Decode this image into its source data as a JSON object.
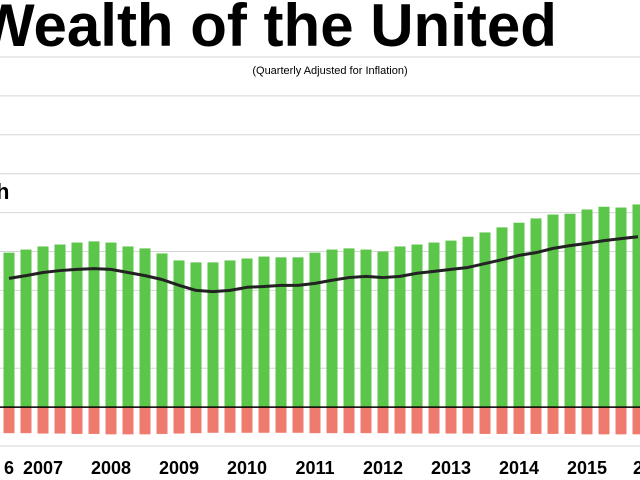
{
  "chart_data": {
    "type": "bar",
    "title": "Wealth of the United",
    "subtitle": "(Quarterly Adjusted for Inflation)",
    "annotation": "h",
    "categories": [
      "6",
      null,
      "2007",
      null,
      null,
      null,
      "2008",
      null,
      null,
      null,
      "2009",
      null,
      null,
      null,
      "2010",
      null,
      null,
      null,
      "2011",
      null,
      null,
      null,
      "2012",
      null,
      null,
      null,
      "2013",
      null,
      null,
      null,
      "2014",
      null,
      null,
      null,
      "2015",
      null,
      null,
      "2"
    ],
    "series": [
      {
        "type": "bar",
        "color": "#5cc64a",
        "values": [
          39.7,
          40.5,
          41.3,
          41.8,
          42.3,
          42.6,
          42.3,
          41.3,
          40.8,
          39.5,
          37.7,
          37.2,
          37.2,
          37.7,
          38.2,
          38.7,
          38.5,
          38.5,
          39.7,
          40.5,
          40.8,
          40.5,
          40,
          41.3,
          41.8,
          42.3,
          42.8,
          43.8,
          44.9,
          46.2,
          47.4,
          48.5,
          49.5,
          49.7,
          50.8,
          51.5,
          51.3,
          52.1
        ]
      },
      {
        "type": "bar",
        "color": "#ef7b6e",
        "values": [
          -6.7,
          -6.7,
          -6.8,
          -6.8,
          -6.9,
          -6.9,
          -7,
          -7,
          -7,
          -6.9,
          -6.8,
          -6.7,
          -6.6,
          -6.6,
          -6.6,
          -6.6,
          -6.6,
          -6.6,
          -6.7,
          -6.7,
          -6.7,
          -6.7,
          -6.7,
          -6.8,
          -6.8,
          -6.8,
          -6.8,
          -6.8,
          -6.9,
          -6.9,
          -6.9,
          -6.9,
          -6.9,
          -6.9,
          -7,
          -7,
          -7,
          -7
        ]
      },
      {
        "type": "line",
        "color": "#222222",
        "values": [
          33.1,
          33.8,
          34.6,
          35.1,
          35.4,
          35.6,
          35.4,
          34.6,
          33.8,
          32.8,
          31.3,
          30.0,
          29.7,
          30.0,
          30.8,
          31.0,
          31.3,
          31.3,
          31.8,
          32.6,
          33.3,
          33.6,
          33.3,
          33.6,
          34.4,
          34.9,
          35.4,
          35.9,
          36.9,
          37.9,
          39.0,
          39.7,
          40.8,
          41.5,
          42.1,
          42.8,
          43.3,
          43.8
        ]
      }
    ],
    "ylim": [
      -10,
      90
    ],
    "yticks": [
      -10,
      0,
      10,
      20,
      30,
      40,
      50,
      60,
      70,
      80,
      90
    ],
    "grid": true
  }
}
